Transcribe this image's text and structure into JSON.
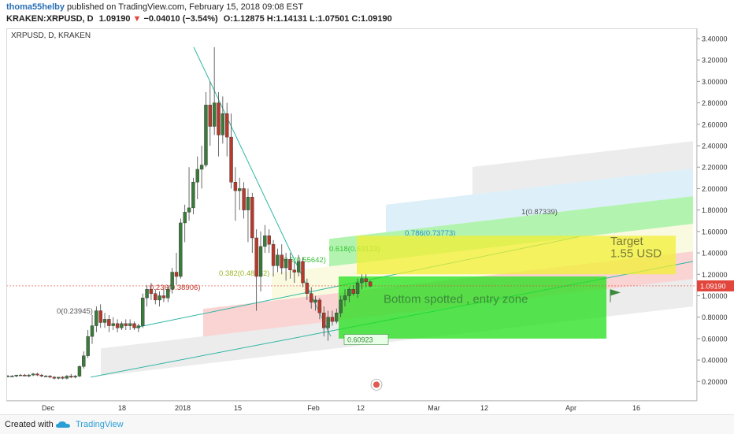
{
  "header": {
    "author": "thoma55helby",
    "published": "published on TradingView.com, February 15, 2018 09:08 EST",
    "symbol": "KRAKEN:XRPUSD, D",
    "last": "1.09190",
    "change_arrow": "▼",
    "change": "−0.04010 (−3.54%)",
    "ohlc": "O:1.12875 H:1.14131 L:1.07501 C:1.09190"
  },
  "chart_title": "XRPUSD, D, KRAKEN",
  "footer": {
    "created_with": "Created with",
    "brand": "TradingView"
  },
  "colors": {
    "up": "#3a7a3a",
    "down": "#b7392b",
    "fib_line": "#2fb7a5",
    "last_price": "#e2453c",
    "green_zone": "#22e01a",
    "yellow_zone": "#f2ef33",
    "blue_fib": "#9fd3ee",
    "grey_fib": "#c8c8c8"
  },
  "chart_data": {
    "type": "candlestick",
    "price_axis": {
      "min": 0.1,
      "max": 3.5,
      "ticks": [
        "0.20000",
        "0.40000",
        "0.60000",
        "0.80000",
        "1.00000",
        "1.20000",
        "1.40000",
        "1.60000",
        "1.80000",
        "2.00000",
        "2.20000",
        "2.40000",
        "2.60000",
        "2.80000",
        "3.00000",
        "3.20000",
        "3.40000"
      ]
    },
    "time_ticks": [
      "Dec",
      "18",
      "2018",
      "15",
      "Feb",
      "12",
      "Mar",
      "12",
      "Apr",
      "16"
    ],
    "last_price": "1.09190",
    "candles": [
      {
        "o": 0.25,
        "h": 0.26,
        "l": 0.24,
        "c": 0.25
      },
      {
        "o": 0.25,
        "h": 0.26,
        "l": 0.24,
        "c": 0.25
      },
      {
        "o": 0.25,
        "h": 0.26,
        "l": 0.24,
        "c": 0.26
      },
      {
        "o": 0.26,
        "h": 0.27,
        "l": 0.25,
        "c": 0.26
      },
      {
        "o": 0.26,
        "h": 0.27,
        "l": 0.25,
        "c": 0.25
      },
      {
        "o": 0.25,
        "h": 0.27,
        "l": 0.24,
        "c": 0.26
      },
      {
        "o": 0.26,
        "h": 0.28,
        "l": 0.25,
        "c": 0.27
      },
      {
        "o": 0.27,
        "h": 0.28,
        "l": 0.25,
        "c": 0.26
      },
      {
        "o": 0.26,
        "h": 0.27,
        "l": 0.24,
        "c": 0.25
      },
      {
        "o": 0.25,
        "h": 0.26,
        "l": 0.24,
        "c": 0.25
      },
      {
        "o": 0.25,
        "h": 0.26,
        "l": 0.23,
        "c": 0.24
      },
      {
        "o": 0.24,
        "h": 0.25,
        "l": 0.22,
        "c": 0.23
      },
      {
        "o": 0.23,
        "h": 0.24,
        "l": 0.22,
        "c": 0.24
      },
      {
        "o": 0.24,
        "h": 0.25,
        "l": 0.22,
        "c": 0.23
      },
      {
        "o": 0.23,
        "h": 0.26,
        "l": 0.22,
        "c": 0.25
      },
      {
        "o": 0.25,
        "h": 0.27,
        "l": 0.23,
        "c": 0.24
      },
      {
        "o": 0.24,
        "h": 0.26,
        "l": 0.23,
        "c": 0.25
      },
      {
        "o": 0.25,
        "h": 0.35,
        "l": 0.24,
        "c": 0.34
      },
      {
        "o": 0.34,
        "h": 0.48,
        "l": 0.32,
        "c": 0.44
      },
      {
        "o": 0.44,
        "h": 0.68,
        "l": 0.42,
        "c": 0.62
      },
      {
        "o": 0.62,
        "h": 0.82,
        "l": 0.55,
        "c": 0.72
      },
      {
        "o": 0.72,
        "h": 0.9,
        "l": 0.66,
        "c": 0.86
      },
      {
        "o": 0.86,
        "h": 0.92,
        "l": 0.7,
        "c": 0.75
      },
      {
        "o": 0.75,
        "h": 0.84,
        "l": 0.7,
        "c": 0.78
      },
      {
        "o": 0.78,
        "h": 0.82,
        "l": 0.66,
        "c": 0.72
      },
      {
        "o": 0.72,
        "h": 0.8,
        "l": 0.68,
        "c": 0.74
      },
      {
        "o": 0.74,
        "h": 0.78,
        "l": 0.66,
        "c": 0.7
      },
      {
        "o": 0.7,
        "h": 0.76,
        "l": 0.68,
        "c": 0.74
      },
      {
        "o": 0.74,
        "h": 0.78,
        "l": 0.68,
        "c": 0.72
      },
      {
        "o": 0.72,
        "h": 0.78,
        "l": 0.68,
        "c": 0.74
      },
      {
        "o": 0.74,
        "h": 0.76,
        "l": 0.68,
        "c": 0.7
      },
      {
        "o": 0.7,
        "h": 0.74,
        "l": 0.66,
        "c": 0.72
      },
      {
        "o": 0.72,
        "h": 1.02,
        "l": 0.7,
        "c": 0.98
      },
      {
        "o": 0.98,
        "h": 1.1,
        "l": 0.9,
        "c": 1.06
      },
      {
        "o": 1.06,
        "h": 1.12,
        "l": 0.96,
        "c": 1.02
      },
      {
        "o": 1.02,
        "h": 1.06,
        "l": 0.92,
        "c": 0.96
      },
      {
        "o": 0.96,
        "h": 1.04,
        "l": 0.9,
        "c": 1.0
      },
      {
        "o": 1.0,
        "h": 1.06,
        "l": 0.94,
        "c": 0.98
      },
      {
        "o": 0.98,
        "h": 1.1,
        "l": 0.94,
        "c": 1.06
      },
      {
        "o": 1.06,
        "h": 1.26,
        "l": 1.02,
        "c": 1.22
      },
      {
        "o": 1.22,
        "h": 1.4,
        "l": 1.1,
        "c": 1.18
      },
      {
        "o": 1.18,
        "h": 1.72,
        "l": 1.16,
        "c": 1.68
      },
      {
        "o": 1.68,
        "h": 1.85,
        "l": 1.5,
        "c": 1.78
      },
      {
        "o": 1.78,
        "h": 2.2,
        "l": 1.7,
        "c": 1.82
      },
      {
        "o": 1.82,
        "h": 2.1,
        "l": 1.76,
        "c": 2.06
      },
      {
        "o": 2.06,
        "h": 2.3,
        "l": 1.9,
        "c": 2.18
      },
      {
        "o": 2.18,
        "h": 2.4,
        "l": 2.0,
        "c": 2.22
      },
      {
        "o": 2.22,
        "h": 2.9,
        "l": 2.2,
        "c": 2.78
      },
      {
        "o": 2.78,
        "h": 3.0,
        "l": 2.4,
        "c": 2.58
      },
      {
        "o": 2.58,
        "h": 3.32,
        "l": 2.5,
        "c": 2.8
      },
      {
        "o": 2.8,
        "h": 2.9,
        "l": 2.3,
        "c": 2.5
      },
      {
        "o": 2.5,
        "h": 2.86,
        "l": 2.42,
        "c": 2.7
      },
      {
        "o": 2.7,
        "h": 2.8,
        "l": 2.3,
        "c": 2.48
      },
      {
        "o": 2.48,
        "h": 2.7,
        "l": 2.0,
        "c": 2.06
      },
      {
        "o": 2.06,
        "h": 2.2,
        "l": 1.7,
        "c": 1.98
      },
      {
        "o": 1.98,
        "h": 2.1,
        "l": 1.8,
        "c": 2.0
      },
      {
        "o": 2.0,
        "h": 2.06,
        "l": 1.72,
        "c": 1.8
      },
      {
        "o": 1.8,
        "h": 2.0,
        "l": 1.5,
        "c": 1.92
      },
      {
        "o": 1.92,
        "h": 1.96,
        "l": 1.4,
        "c": 1.54
      },
      {
        "o": 1.54,
        "h": 1.62,
        "l": 0.86,
        "c": 1.18
      },
      {
        "o": 1.18,
        "h": 1.6,
        "l": 1.04,
        "c": 1.46
      },
      {
        "o": 1.46,
        "h": 1.66,
        "l": 1.4,
        "c": 1.56
      },
      {
        "o": 1.56,
        "h": 1.62,
        "l": 1.4,
        "c": 1.48
      },
      {
        "o": 1.48,
        "h": 1.52,
        "l": 1.18,
        "c": 1.28
      },
      {
        "o": 1.28,
        "h": 1.44,
        "l": 1.22,
        "c": 1.38
      },
      {
        "o": 1.38,
        "h": 1.48,
        "l": 1.2,
        "c": 1.26
      },
      {
        "o": 1.26,
        "h": 1.4,
        "l": 1.14,
        "c": 1.34
      },
      {
        "o": 1.34,
        "h": 1.4,
        "l": 1.16,
        "c": 1.24
      },
      {
        "o": 1.24,
        "h": 1.32,
        "l": 1.12,
        "c": 1.22
      },
      {
        "o": 1.22,
        "h": 1.38,
        "l": 1.18,
        "c": 1.32
      },
      {
        "o": 1.32,
        "h": 1.36,
        "l": 1.08,
        "c": 1.12
      },
      {
        "o": 1.12,
        "h": 1.16,
        "l": 0.96,
        "c": 1.02
      },
      {
        "o": 1.02,
        "h": 1.08,
        "l": 0.88,
        "c": 0.94
      },
      {
        "o": 0.94,
        "h": 1.0,
        "l": 0.86,
        "c": 0.96
      },
      {
        "o": 0.96,
        "h": 0.98,
        "l": 0.78,
        "c": 0.84
      },
      {
        "o": 0.84,
        "h": 0.9,
        "l": 0.62,
        "c": 0.7
      },
      {
        "o": 0.7,
        "h": 0.86,
        "l": 0.58,
        "c": 0.8
      },
      {
        "o": 0.8,
        "h": 0.86,
        "l": 0.72,
        "c": 0.76
      },
      {
        "o": 0.76,
        "h": 0.88,
        "l": 0.74,
        "c": 0.84
      },
      {
        "o": 0.84,
        "h": 1.0,
        "l": 0.8,
        "c": 0.96
      },
      {
        "o": 0.96,
        "h": 1.06,
        "l": 0.9,
        "c": 1.0
      },
      {
        "o": 1.0,
        "h": 1.08,
        "l": 0.94,
        "c": 1.06
      },
      {
        "o": 1.06,
        "h": 1.1,
        "l": 1.0,
        "c": 1.02
      },
      {
        "o": 1.02,
        "h": 1.16,
        "l": 0.98,
        "c": 1.12
      },
      {
        "o": 1.12,
        "h": 1.2,
        "l": 1.06,
        "c": 1.16
      },
      {
        "o": 1.16,
        "h": 1.2,
        "l": 1.08,
        "c": 1.13
      },
      {
        "o": 1.13,
        "h": 1.14,
        "l": 1.08,
        "c": 1.09
      }
    ],
    "fib_labels": [
      "0(0.23945)",
      "0.236(0.38906)",
      "0.382(0.48162)",
      "0.5(0.55642)",
      "0.618(0.63123)",
      "0.786(0.73773)",
      "1(0.87339)"
    ],
    "annotations": {
      "bottom_box": "Bottom spotted , entry zone",
      "bottom_label": "0.60923",
      "target_line1": "Target",
      "target_line2": "1.55 USD"
    }
  }
}
